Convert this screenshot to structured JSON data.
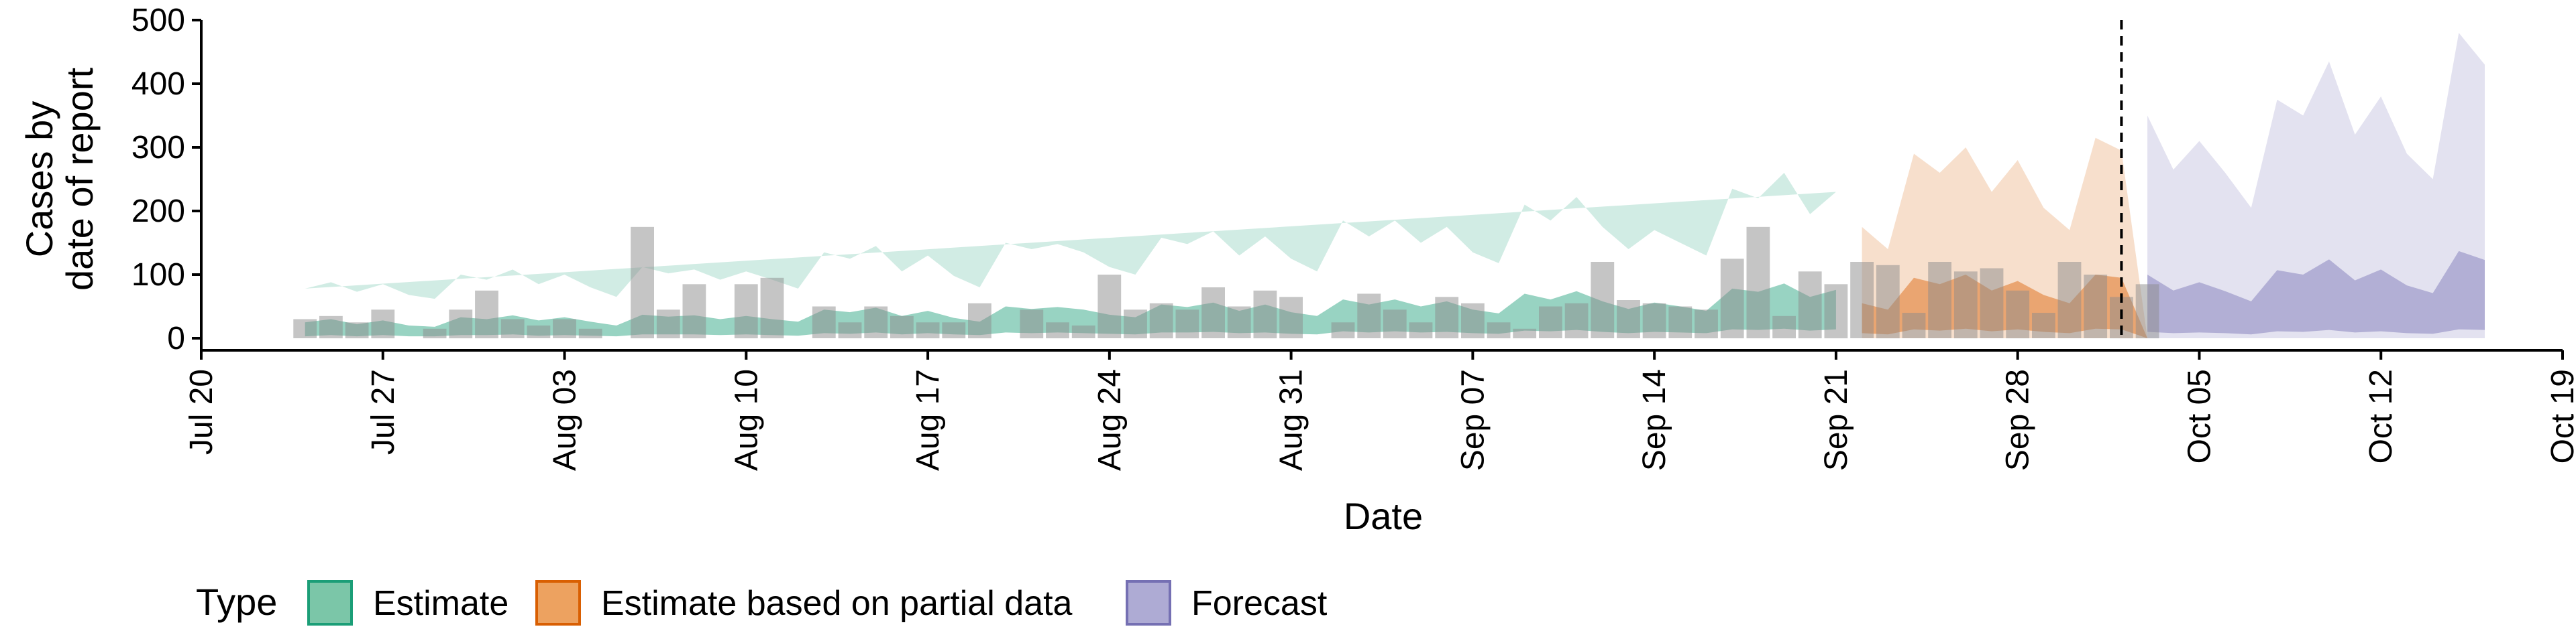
{
  "chart_data": {
    "type": "area",
    "xlabel": "Date",
    "ylabel": [
      "Cases by",
      "date of report"
    ],
    "ylim": [
      0,
      500
    ],
    "yticks": [
      0,
      100,
      200,
      300,
      400,
      500
    ],
    "xlim": [
      "2020-07-20",
      "2020-10-19"
    ],
    "xticks": [
      {
        "date": "2020-07-20",
        "label": "Jul 20"
      },
      {
        "date": "2020-07-27",
        "label": "Jul 27"
      },
      {
        "date": "2020-08-03",
        "label": "Aug 03"
      },
      {
        "date": "2020-08-10",
        "label": "Aug 10"
      },
      {
        "date": "2020-08-17",
        "label": "Aug 17"
      },
      {
        "date": "2020-08-24",
        "label": "Aug 24"
      },
      {
        "date": "2020-08-31",
        "label": "Aug 31"
      },
      {
        "date": "2020-09-07",
        "label": "Sep 07"
      },
      {
        "date": "2020-09-14",
        "label": "Sep 14"
      },
      {
        "date": "2020-09-21",
        "label": "Sep 21"
      },
      {
        "date": "2020-09-28",
        "label": "Sep 28"
      },
      {
        "date": "2020-10-05",
        "label": "Oct 05"
      },
      {
        "date": "2020-10-12",
        "label": "Oct 12"
      },
      {
        "date": "2020-10-19",
        "label": "Oct 19"
      }
    ],
    "forecast_date": "2020-10-02",
    "grid": false,
    "legend": {
      "position": "bottom-left",
      "title": "Type",
      "entries": [
        {
          "label": "Estimate",
          "fill": "#7bc6a8",
          "stroke": "#1b9e77"
        },
        {
          "label": "Estimate based on partial data",
          "fill": "#eda260",
          "stroke": "#d95f02"
        },
        {
          "label": "Forecast",
          "fill": "#aeabd4",
          "stroke": "#7570b3"
        }
      ]
    },
    "reported_cases": {
      "start": "2020-07-24",
      "values": [
        30,
        35,
        25,
        45,
        0,
        15,
        45,
        75,
        30,
        20,
        30,
        15,
        0,
        175,
        45,
        85,
        0,
        85,
        95,
        0,
        50,
        25,
        50,
        35,
        25,
        25,
        55,
        0,
        45,
        25,
        20,
        100,
        45,
        55,
        45,
        80,
        50,
        75,
        65,
        0,
        25,
        70,
        45,
        25,
        65,
        55,
        25,
        15,
        50,
        55,
        120,
        60,
        55,
        50,
        45,
        125,
        175,
        35,
        105,
        85,
        120,
        115,
        40,
        120,
        105,
        110,
        75,
        40,
        120,
        100,
        65,
        85
      ]
    },
    "series": [
      {
        "name": "Estimate",
        "start": "2020-07-24",
        "color": "#1b9e77",
        "outer_lower": [
          0,
          0,
          0,
          0,
          0,
          0,
          0,
          0,
          0,
          0,
          0,
          0,
          0,
          0,
          0,
          0,
          0,
          0,
          0,
          0,
          0,
          0,
          0,
          0,
          0,
          0,
          0,
          0,
          0,
          0,
          0,
          0,
          0,
          0,
          0,
          0,
          0,
          0,
          0,
          0,
          0,
          0,
          0,
          0,
          0,
          0,
          0,
          0,
          0,
          0,
          0,
          0,
          0,
          0,
          0,
          0,
          0,
          0,
          0
        ],
        "outer_upper": [
          78,
          88,
          73,
          85,
          68,
          62,
          100,
          92,
          108,
          85,
          100,
          80,
          65,
          112,
          102,
          108,
          92,
          105,
          92,
          78,
          135,
          125,
          145,
          105,
          130,
          98,
          80,
          150,
          140,
          148,
          135,
          112,
          100,
          158,
          148,
          168,
          130,
          160,
          125,
          105,
          185,
          160,
          185,
          150,
          175,
          135,
          118,
          210,
          185,
          222,
          175,
          140,
          170,
          150,
          130,
          235,
          220,
          260,
          195,
          230
        ],
        "inner_lower": [
          3,
          5,
          3,
          5,
          3,
          3,
          5,
          5,
          6,
          4,
          5,
          4,
          3,
          6,
          6,
          6,
          5,
          6,
          5,
          4,
          8,
          7,
          9,
          6,
          8,
          6,
          5,
          9,
          8,
          9,
          8,
          7,
          6,
          9,
          9,
          10,
          8,
          9,
          7,
          6,
          11,
          9,
          11,
          9,
          10,
          8,
          7,
          12,
          11,
          13,
          10,
          8,
          10,
          9,
          8,
          14,
          13,
          15,
          12,
          14
        ],
        "inner_upper": [
          25,
          30,
          22,
          28,
          20,
          18,
          33,
          30,
          36,
          28,
          33,
          26,
          20,
          37,
          34,
          36,
          30,
          35,
          30,
          26,
          45,
          41,
          48,
          35,
          43,
          32,
          26,
          50,
          46,
          49,
          45,
          37,
          33,
          53,
          49,
          56,
          43,
          53,
          41,
          35,
          61,
          53,
          61,
          50,
          58,
          45,
          39,
          70,
          61,
          74,
          58,
          46,
          56,
          50,
          43,
          78,
          73,
          86,
          65,
          76
        ]
      },
      {
        "name": "Estimate based on partial data",
        "start": "2020-09-22",
        "color": "#d95f02",
        "outer_lower": [
          0,
          0,
          0,
          0,
          0,
          0,
          0,
          0,
          0,
          0,
          0,
          0
        ],
        "outer_upper": [
          175,
          140,
          290,
          260,
          300,
          230,
          280,
          205,
          170,
          315,
          295,
          0
        ],
        "inner_lower": [
          8,
          6,
          14,
          12,
          15,
          11,
          14,
          10,
          8,
          15,
          14,
          0
        ],
        "inner_upper": [
          55,
          45,
          95,
          85,
          100,
          75,
          90,
          68,
          55,
          100,
          95,
          0
        ]
      },
      {
        "name": "Forecast",
        "start": "2020-10-03",
        "color": "#7570b3",
        "outer_lower": [
          0,
          0,
          0,
          0,
          0,
          0,
          0,
          0,
          0,
          0,
          0,
          0,
          0,
          0
        ],
        "outer_upper": [
          350,
          265,
          310,
          260,
          205,
          375,
          350,
          435,
          320,
          380,
          290,
          250,
          480,
          430
        ],
        "inner_lower": [
          10,
          8,
          9,
          8,
          6,
          11,
          10,
          13,
          9,
          11,
          8,
          7,
          14,
          13
        ],
        "inner_upper": [
          100,
          75,
          88,
          74,
          58,
          107,
          100,
          124,
          91,
          108,
          83,
          71,
          137,
          123
        ]
      }
    ]
  }
}
